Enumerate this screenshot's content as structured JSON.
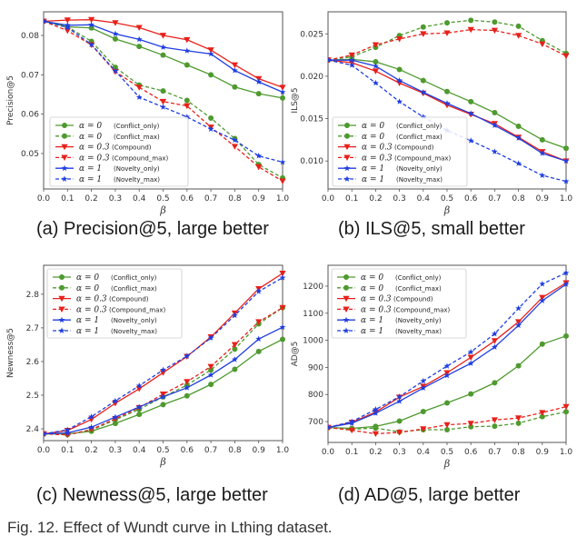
{
  "figure": {
    "caption": "Fig. 12. Effect of Wundt curve in Lthing dataset."
  },
  "legend_entries": [
    {
      "alpha": "α = 0",
      "name": "(Conflict_only)",
      "color": "#4e9a2e",
      "style": "solid",
      "marker": "circle"
    },
    {
      "alpha": "α = 0",
      "name": "(Conflict_max)",
      "color": "#4e9a2e",
      "style": "dashed",
      "marker": "circle"
    },
    {
      "alpha": "α = 0.3",
      "name": "(Compound)",
      "color": "#e8201a",
      "style": "solid",
      "marker": "triangle-down"
    },
    {
      "alpha": "α = 0.3",
      "name": "(Compound_max)",
      "color": "#e8201a",
      "style": "dashed",
      "marker": "triangle-down"
    },
    {
      "alpha": "α = 1",
      "name": "(Novelty_only)",
      "color": "#1f3ee0",
      "style": "solid",
      "marker": "star"
    },
    {
      "alpha": "α = 1",
      "name": "(Novelty_max)",
      "color": "#1f3ee0",
      "style": "dashed",
      "marker": "star"
    }
  ],
  "chart_data": [
    {
      "id": "a",
      "type": "line",
      "caption": "(a) Precision@5, large better",
      "xlabel": "β",
      "ylabel": "Precision@5",
      "x": [
        0.0,
        0.1,
        0.2,
        0.3,
        0.4,
        0.5,
        0.6,
        0.7,
        0.8,
        0.9,
        1.0
      ],
      "xticks": [
        "0.0",
        "0.1",
        "0.2",
        "0.3",
        "0.4",
        "0.5",
        "0.6",
        "0.7",
        "0.8",
        "0.9",
        "1.0"
      ],
      "yticks": [
        0.05,
        0.06,
        0.07,
        0.08
      ],
      "ytick_labels": [
        "0.05",
        "0.06",
        "0.07",
        "0.08"
      ],
      "xlim": [
        0.0,
        1.0
      ],
      "ylim": [
        0.041,
        0.086
      ],
      "legend_position": "lower-left",
      "grid": false,
      "series": [
        {
          "name": "α = 0 (Conflict_only)",
          "values": [
            0.0836,
            0.0822,
            0.0819,
            0.0791,
            0.0772,
            0.075,
            0.0725,
            0.07,
            0.0669,
            0.0652,
            0.0641
          ]
        },
        {
          "name": "α = 0 (Conflict_max)",
          "values": [
            0.0836,
            0.0822,
            0.0785,
            0.0719,
            0.0674,
            0.0659,
            0.0635,
            0.059,
            0.0538,
            0.0472,
            0.0438
          ]
        },
        {
          "name": "α = 0.3 (Compound)",
          "values": [
            0.0836,
            0.0839,
            0.084,
            0.0832,
            0.082,
            0.08,
            0.0789,
            0.0763,
            0.0725,
            0.069,
            0.0668
          ]
        },
        {
          "name": "α = 0.3 (Compound_max)",
          "values": [
            0.0836,
            0.0812,
            0.0776,
            0.0708,
            0.0668,
            0.0632,
            0.0621,
            0.0567,
            0.0518,
            0.0466,
            0.043
          ]
        },
        {
          "name": "α = 1 (Novelty_only)",
          "values": [
            0.0836,
            0.0826,
            0.0827,
            0.0804,
            0.079,
            0.077,
            0.0761,
            0.0753,
            0.0711,
            0.0682,
            0.0656
          ]
        },
        {
          "name": "α = 1 (Novelty_max)",
          "values": [
            0.0836,
            0.082,
            0.0777,
            0.071,
            0.0643,
            0.0618,
            0.0593,
            0.0562,
            0.0534,
            0.0494,
            0.0478
          ]
        }
      ]
    },
    {
      "id": "b",
      "type": "line",
      "caption": "(b) ILS@5, small better",
      "xlabel": "β",
      "ylabel": "ILS@5",
      "x": [
        0.0,
        0.1,
        0.2,
        0.3,
        0.4,
        0.5,
        0.6,
        0.7,
        0.8,
        0.9,
        1.0
      ],
      "xticks": [
        "0.0",
        "0.1",
        "0.2",
        "0.3",
        "0.4",
        "0.5",
        "0.6",
        "0.7",
        "0.8",
        "0.9",
        "1.0"
      ],
      "yticks": [
        0.01,
        0.015,
        0.02,
        0.025
      ],
      "ytick_labels": [
        "0.010",
        "0.015",
        "0.020",
        "0.025"
      ],
      "xlim": [
        0.0,
        1.0
      ],
      "ylim": [
        0.0067,
        0.0276
      ],
      "legend_position": "lower-left",
      "grid": false,
      "series": [
        {
          "name": "α = 0 (Conflict_only)",
          "values": [
            0.0219,
            0.022,
            0.0217,
            0.0208,
            0.0195,
            0.0182,
            0.017,
            0.0157,
            0.0141,
            0.0125,
            0.0115
          ]
        },
        {
          "name": "α = 0 (Conflict_max)",
          "values": [
            0.0219,
            0.0223,
            0.0234,
            0.0248,
            0.0258,
            0.0263,
            0.0266,
            0.0264,
            0.0259,
            0.0242,
            0.0227
          ]
        },
        {
          "name": "α = 0.3 (Compound)",
          "values": [
            0.0219,
            0.0216,
            0.0206,
            0.0192,
            0.018,
            0.0166,
            0.0155,
            0.0144,
            0.0128,
            0.0111,
            0.01
          ]
        },
        {
          "name": "α = 0.3 (Compound_max)",
          "values": [
            0.0219,
            0.0225,
            0.0237,
            0.0244,
            0.025,
            0.0251,
            0.0255,
            0.0254,
            0.0248,
            0.0238,
            0.0224
          ]
        },
        {
          "name": "α = 1 (Novelty_only)",
          "values": [
            0.0219,
            0.0219,
            0.0212,
            0.0195,
            0.0181,
            0.0168,
            0.0156,
            0.0142,
            0.0127,
            0.0109,
            0.01
          ]
        },
        {
          "name": "α = 1 (Novelty_max)",
          "values": [
            0.0219,
            0.0213,
            0.0192,
            0.017,
            0.0152,
            0.0136,
            0.0124,
            0.0111,
            0.0097,
            0.0083,
            0.0076
          ]
        }
      ]
    },
    {
      "id": "c",
      "type": "line",
      "caption": "(c) Newness@5, large better",
      "xlabel": "β",
      "ylabel": "Newness@5",
      "x": [
        0.0,
        0.1,
        0.2,
        0.3,
        0.4,
        0.5,
        0.6,
        0.7,
        0.8,
        0.9,
        1.0
      ],
      "xticks": [
        "0.0",
        "0.1",
        "0.2",
        "0.3",
        "0.4",
        "0.5",
        "0.6",
        "0.7",
        "0.8",
        "0.9",
        "1.0"
      ],
      "yticks": [
        2.4,
        2.5,
        2.6,
        2.7,
        2.8
      ],
      "ytick_labels": [
        "2.4",
        "2.5",
        "2.6",
        "2.7",
        "2.8"
      ],
      "xlim": [
        0.0,
        1.0
      ],
      "ylim": [
        2.365,
        2.886
      ],
      "legend_position": "upper-left",
      "grid": false,
      "series": [
        {
          "name": "α = 0 (Conflict_only)",
          "values": [
            2.385,
            2.385,
            2.393,
            2.416,
            2.443,
            2.472,
            2.498,
            2.532,
            2.577,
            2.63,
            2.666
          ]
        },
        {
          "name": "α = 0 (Conflict_max)",
          "values": [
            2.385,
            2.383,
            2.396,
            2.427,
            2.458,
            2.495,
            2.53,
            2.575,
            2.637,
            2.712,
            2.76
          ]
        },
        {
          "name": "α = 0.3 (Compound)",
          "values": [
            2.385,
            2.395,
            2.428,
            2.476,
            2.519,
            2.567,
            2.615,
            2.673,
            2.744,
            2.816,
            2.862
          ]
        },
        {
          "name": "α = 0.3 (Compound_max)",
          "values": [
            2.385,
            2.382,
            2.398,
            2.43,
            2.463,
            2.503,
            2.54,
            2.585,
            2.65,
            2.718,
            2.76
          ]
        },
        {
          "name": "α = 1 (Novelty_only)",
          "values": [
            2.385,
            2.388,
            2.405,
            2.435,
            2.465,
            2.495,
            2.522,
            2.56,
            2.606,
            2.667,
            2.702
          ]
        },
        {
          "name": "α = 1 (Novelty_max)",
          "values": [
            2.385,
            2.397,
            2.436,
            2.483,
            2.528,
            2.575,
            2.616,
            2.67,
            2.737,
            2.808,
            2.849
          ]
        }
      ]
    },
    {
      "id": "d",
      "type": "line",
      "caption": "(d) AD@5, large better",
      "xlabel": "β",
      "ylabel": "AD@5",
      "x": [
        0.0,
        0.1,
        0.2,
        0.3,
        0.4,
        0.5,
        0.6,
        0.7,
        0.8,
        0.9,
        1.0
      ],
      "xticks": [
        "0.0",
        "0.1",
        "0.2",
        "0.3",
        "0.4",
        "0.5",
        "0.6",
        "0.7",
        "0.8",
        "0.9",
        "1.0"
      ],
      "yticks": [
        700,
        800,
        900,
        1000,
        1100,
        1200
      ],
      "ytick_labels": [
        "700",
        "800",
        "900",
        "1000",
        "1100",
        "1200"
      ],
      "xlim": [
        0.0,
        1.0
      ],
      "ylim": [
        623,
        1277
      ],
      "legend_position": "upper-left",
      "grid": false,
      "series": [
        {
          "name": "α = 0 (Conflict_only)",
          "values": [
            678,
            675,
            682,
            702,
            737,
            769,
            802,
            843,
            906,
            986,
            1016
          ]
        },
        {
          "name": "α = 0 (Conflict_max)",
          "values": [
            678,
            672,
            676,
            662,
            670,
            670,
            681,
            683,
            694,
            718,
            736
          ]
        },
        {
          "name": "α = 0.3 (Compound)",
          "values": [
            678,
            697,
            735,
            790,
            830,
            880,
            937,
            998,
            1068,
            1158,
            1212
          ]
        },
        {
          "name": "α = 0.3 (Compound_max)",
          "values": [
            678,
            668,
            655,
            660,
            673,
            688,
            693,
            706,
            713,
            733,
            755
          ]
        },
        {
          "name": "α = 1 (Novelty_only)",
          "values": [
            678,
            694,
            731,
            775,
            824,
            870,
            915,
            975,
            1055,
            1146,
            1207
          ]
        },
        {
          "name": "α = 1 (Novelty_max)",
          "values": [
            678,
            700,
            745,
            792,
            850,
            905,
            957,
            1024,
            1118,
            1208,
            1249
          ]
        }
      ]
    }
  ]
}
